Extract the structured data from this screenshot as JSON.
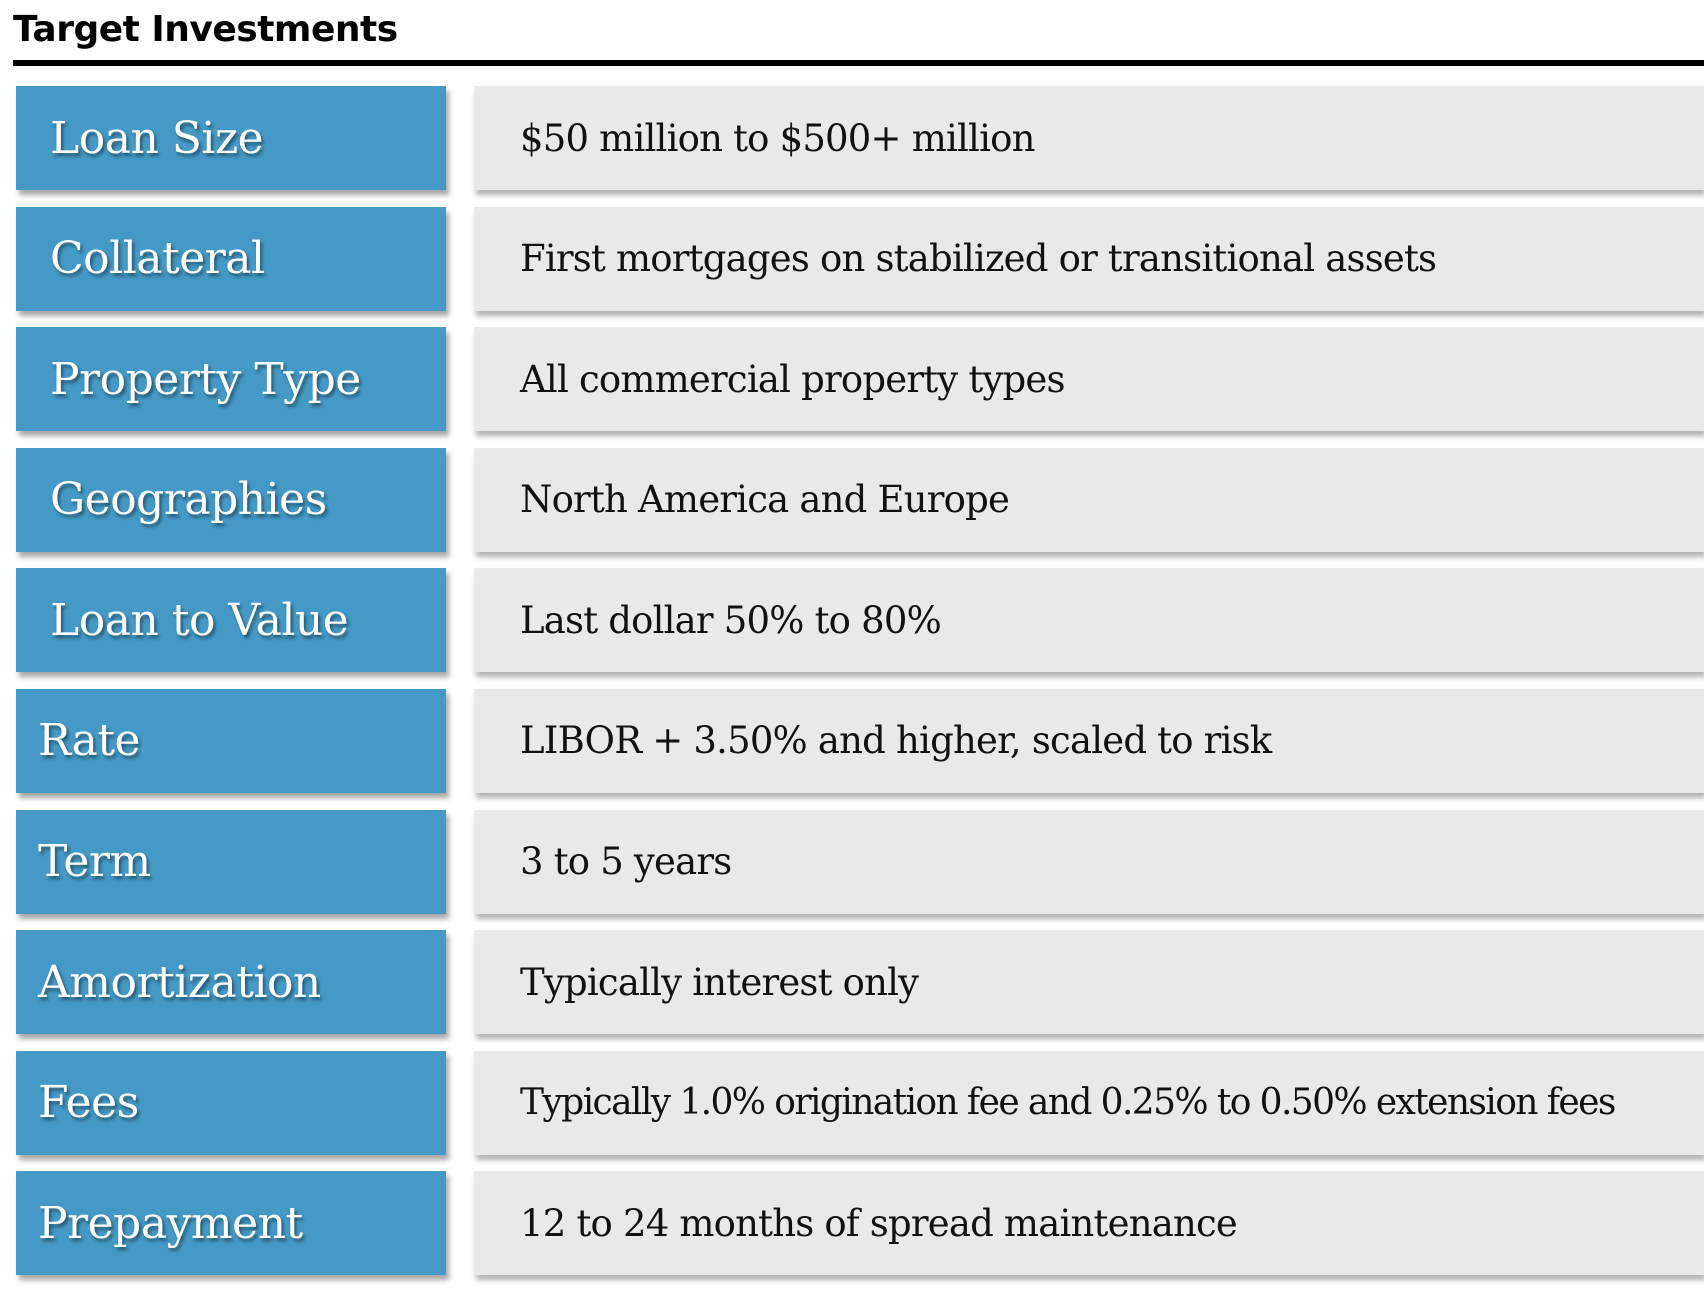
{
  "title": "Target Investments",
  "rows": [
    {
      "label": "Loan Size",
      "value": "$50 million to $500+ million"
    },
    {
      "label": "Collateral",
      "value": "First mortgages on stabilized or transitional assets"
    },
    {
      "label": "Property Type",
      "value": "All commercial property types"
    },
    {
      "label": "Geographies",
      "value": "North America and Europe"
    },
    {
      "label": "Loan to Value",
      "value": "Last dollar 50% to 80%"
    },
    {
      "label": "Rate",
      "value": "LIBOR + 3.50% and higher, scaled to risk"
    },
    {
      "label": "Term",
      "value": "3 to 5 years"
    },
    {
      "label": "Amortization",
      "value": "Typically interest only"
    },
    {
      "label": "Fees",
      "value": "Typically 1.0% origination fee and 0.25% to 0.50% extension fees"
    },
    {
      "label": "Prepayment",
      "value": "12 to 24 months of spread maintenance"
    }
  ],
  "colors": {
    "label_background": "#4499c6",
    "value_background": "#e9e9e9",
    "rule": "#000000"
  }
}
